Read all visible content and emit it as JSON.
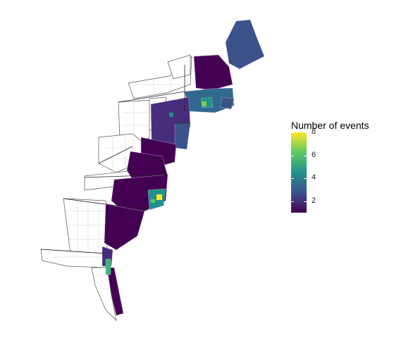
{
  "legend": {
    "title": "Number of events",
    "ticks": [
      "8",
      "6",
      "4",
      "2"
    ],
    "scale_min": 1,
    "scale_max": 8,
    "tick_values": [
      8,
      6,
      4,
      2
    ],
    "colors": [
      "#440154",
      "#3b528b",
      "#21918c",
      "#5ec962",
      "#fde725"
    ]
  },
  "map": {
    "region": "Eastern United States counties",
    "fill_empty": "#ffffff",
    "county_border": "#bdbdbd",
    "state_border": "#222222"
  }
}
